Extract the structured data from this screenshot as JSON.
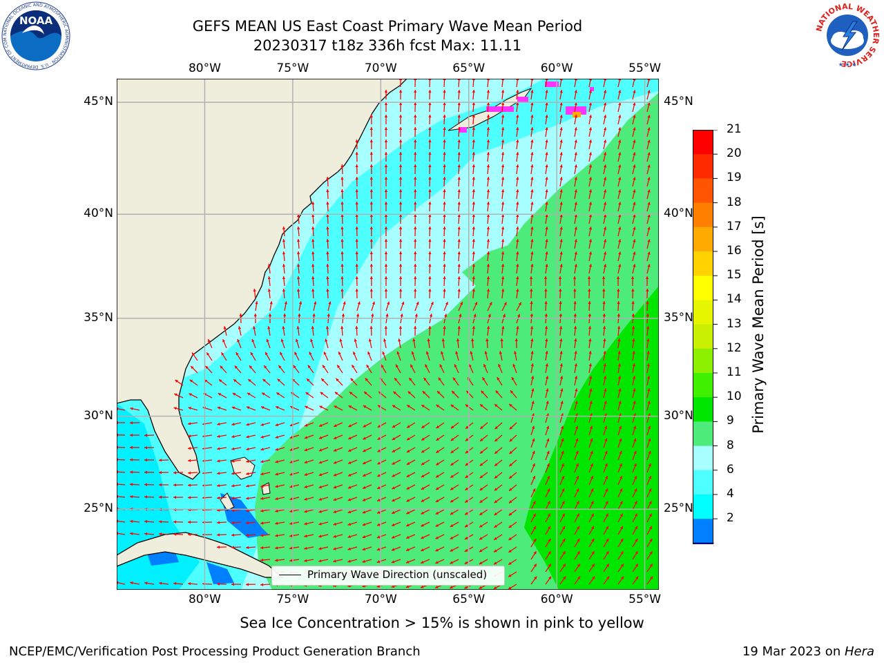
{
  "title": {
    "line1": "GEFS MEAN US East Coast Primary Wave Mean Period",
    "line2": "20230317 t18z 336h fcst   Max: 11.11"
  },
  "logos": {
    "noaa": {
      "text": "NOAA",
      "ring_text": "NATIONAL OCEANIC AND ATMOSPHERIC ADMINISTRATION · U.S. DEPARTMENT OF COMMERCE"
    },
    "nws": {
      "ring_text": "NATIONAL WEATHER SERVICE"
    }
  },
  "map": {
    "lon_labels": [
      "80°W",
      "75°W",
      "70°W",
      "65°W",
      "60°W",
      "55°W"
    ],
    "lat_labels": [
      "45°N",
      "40°N",
      "35°N",
      "30°N",
      "25°N"
    ],
    "lon_values": [
      -80,
      -75,
      -70,
      -65,
      -60,
      -55
    ],
    "lat_values": [
      45,
      40,
      35,
      30,
      25
    ],
    "extent": {
      "lon_min": -85,
      "lon_max": -54.2,
      "lat_min": 20.5,
      "lat_max": 46
    },
    "colors": {
      "land": "#efeedc",
      "arrow": "#ff0000",
      "grid": "#b0b0b0"
    }
  },
  "legend": {
    "label": "Primary Wave Direction (unscaled)"
  },
  "colorbar": {
    "label": "Primary Wave Mean Period [s]",
    "ticks": [
      "21",
      "20",
      "19",
      "18",
      "17",
      "16",
      "15",
      "14",
      "13",
      "12",
      "11",
      "10",
      "9",
      "8",
      "6",
      "4",
      "2"
    ],
    "colors": [
      "#ff0000",
      "#ff2a00",
      "#ff5500",
      "#ff8000",
      "#ffaa00",
      "#ffd200",
      "#ffff00",
      "#e6f500",
      "#c8f000",
      "#8cf000",
      "#3ff000",
      "#00e600",
      "#4deb7a",
      "#a8ffff",
      "#4dffff",
      "#00ffff",
      "#0080ff"
    ],
    "under_color": "#0000ff"
  },
  "caption": "Sea Ice Concentration > 15% is shown in pink to yellow",
  "footer": {
    "left": "NCEP/EMC/Verification Post Processing Product Generation Branch",
    "right_prefix": "19 Mar 2023 on ",
    "right_italic": "Hera"
  }
}
